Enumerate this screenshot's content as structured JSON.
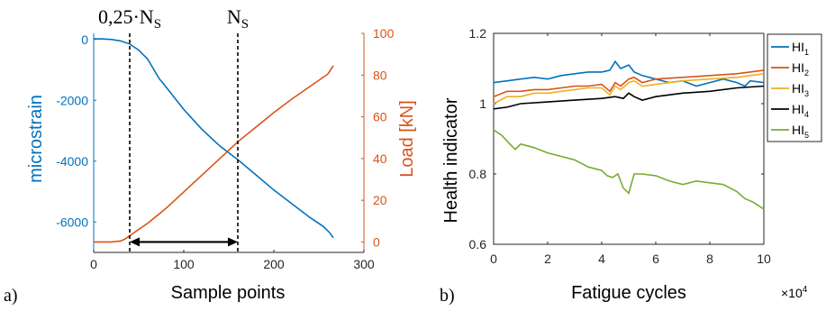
{
  "chart_data": [
    {
      "panel_label": "a)",
      "type": "line",
      "xlabel": "Sample points",
      "ylabel_left": "microstrain",
      "ylabel_right": "Load [kN]",
      "xlim": [
        0,
        300
      ],
      "ylim_left": [
        -7000,
        200
      ],
      "ylim_right": [
        -5,
        100
      ],
      "xticks": [
        0,
        100,
        200,
        300
      ],
      "yticks_left": [
        0,
        -2000,
        -4000,
        -6000
      ],
      "yticks_right": [
        0,
        20,
        40,
        60,
        80,
        100
      ],
      "grid": false,
      "colors": {
        "left": "#0072BD",
        "right": "#D95319",
        "markers": "#000000"
      },
      "series": [
        {
          "axis": "left",
          "x": [
            0,
            10,
            20,
            30,
            40,
            50,
            60,
            65,
            70,
            73,
            76,
            80,
            100,
            120,
            140,
            160,
            180,
            200,
            220,
            240,
            255,
            262,
            266
          ],
          "values": [
            20,
            15,
            0,
            -50,
            -150,
            -350,
            -650,
            -900,
            -1150,
            -1300,
            -1400,
            -1550,
            -2300,
            -2950,
            -3500,
            -3950,
            -4450,
            -4950,
            -5400,
            -5850,
            -6150,
            -6350,
            -6520
          ]
        },
        {
          "axis": "right",
          "x": [
            0,
            20,
            30,
            35,
            40,
            50,
            60,
            80,
            100,
            120,
            140,
            160,
            180,
            200,
            220,
            240,
            260,
            266
          ],
          "values": [
            0,
            0,
            0.5,
            1.5,
            3,
            6,
            9,
            16,
            24,
            32,
            40,
            48,
            55,
            62,
            68.5,
            74.5,
            80.5,
            84.5
          ]
        }
      ],
      "markers": [
        {
          "label": "0,25·N",
          "subscript": "S",
          "x": 40
        },
        {
          "label": "N",
          "subscript": "S",
          "x": 160
        }
      ],
      "arrow": {
        "from": 40,
        "to": 160,
        "y": 0
      }
    },
    {
      "panel_label": "b)",
      "type": "line",
      "xlabel": "Fatigue cycles",
      "ylabel": "Health indicator",
      "xlim": [
        0,
        10
      ],
      "ylim": [
        0.6,
        1.2
      ],
      "xticks": [
        0,
        2,
        4,
        6,
        8,
        10
      ],
      "yticks": [
        0.6,
        0.8,
        1,
        1.2
      ],
      "x_multiplier": "×10",
      "x_multiplier_exp": "4",
      "grid": false,
      "legend_position": "right",
      "series": [
        {
          "name": "HI",
          "sub": "1",
          "color": "#0072BD",
          "x": [
            0,
            0.5,
            1,
            1.5,
            2,
            2.5,
            3,
            3.5,
            4,
            4.3,
            4.5,
            4.7,
            5,
            5.2,
            5.5,
            6,
            6.5,
            7,
            7.5,
            8,
            8.5,
            9,
            9.3,
            9.5,
            10
          ],
          "values": [
            1.06,
            1.065,
            1.07,
            1.075,
            1.07,
            1.08,
            1.085,
            1.09,
            1.09,
            1.095,
            1.12,
            1.1,
            1.11,
            1.09,
            1.08,
            1.07,
            1.06,
            1.065,
            1.05,
            1.06,
            1.07,
            1.06,
            1.05,
            1.065,
            1.06
          ]
        },
        {
          "name": "HI",
          "sub": "2",
          "color": "#D95319",
          "x": [
            0,
            0.5,
            1,
            1.5,
            2,
            2.5,
            3,
            3.5,
            4,
            4.3,
            4.5,
            4.7,
            5,
            5.2,
            5.5,
            6,
            7,
            8,
            9,
            10
          ],
          "values": [
            1.02,
            1.035,
            1.035,
            1.04,
            1.04,
            1.045,
            1.05,
            1.05,
            1.055,
            1.035,
            1.06,
            1.05,
            1.07,
            1.075,
            1.06,
            1.07,
            1.075,
            1.08,
            1.085,
            1.095
          ]
        },
        {
          "name": "HI",
          "sub": "3",
          "color": "#EDB120",
          "x": [
            0,
            0.5,
            1,
            1.5,
            2,
            2.5,
            3,
            3.5,
            4,
            4.3,
            4.5,
            4.7,
            5,
            5.2,
            5.5,
            6,
            7,
            8,
            9,
            10
          ],
          "values": [
            1.0,
            1.02,
            1.02,
            1.03,
            1.03,
            1.035,
            1.04,
            1.045,
            1.045,
            1.025,
            1.05,
            1.04,
            1.06,
            1.065,
            1.05,
            1.055,
            1.065,
            1.07,
            1.075,
            1.085
          ]
        },
        {
          "name": "HI",
          "sub": "4",
          "color": "#000000",
          "x": [
            0,
            0.5,
            1,
            2,
            3,
            4,
            4.5,
            4.8,
            5,
            5.2,
            5.5,
            6,
            7,
            8,
            9,
            10
          ],
          "values": [
            0.985,
            0.99,
            1.0,
            1.005,
            1.01,
            1.015,
            1.02,
            1.015,
            1.03,
            1.02,
            1.01,
            1.02,
            1.03,
            1.035,
            1.045,
            1.05
          ]
        },
        {
          "name": "HI",
          "sub": "5",
          "color": "#77AC30",
          "x": [
            0,
            0.3,
            0.6,
            0.8,
            1,
            1.5,
            2,
            2.5,
            3,
            3.5,
            4,
            4.2,
            4.4,
            4.6,
            4.8,
            5,
            5.2,
            5.5,
            6,
            6.5,
            7,
            7.5,
            8,
            8.5,
            9,
            9.3,
            9.6,
            10
          ],
          "values": [
            0.925,
            0.91,
            0.885,
            0.87,
            0.885,
            0.875,
            0.86,
            0.85,
            0.84,
            0.82,
            0.81,
            0.795,
            0.79,
            0.8,
            0.76,
            0.745,
            0.8,
            0.8,
            0.795,
            0.78,
            0.77,
            0.78,
            0.775,
            0.77,
            0.75,
            0.73,
            0.72,
            0.7
          ]
        }
      ]
    }
  ]
}
